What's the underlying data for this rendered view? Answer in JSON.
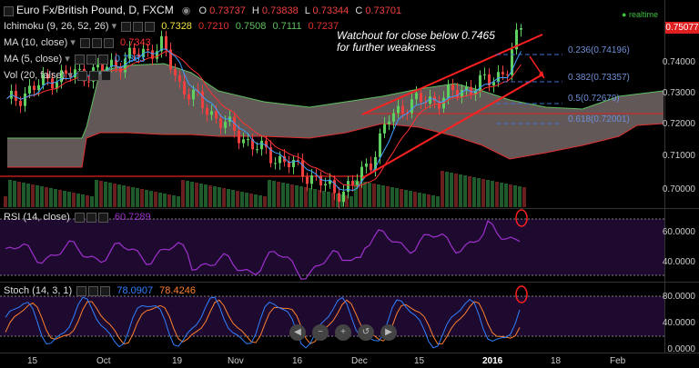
{
  "header": {
    "symbol": "Euro Fx/British Pound, D, FXCM",
    "o_label": "O",
    "o_value": "0.73737",
    "h_label": "H",
    "h_value": "0.73838",
    "l_label": "L",
    "l_value": "0.73344",
    "c_label": "C",
    "c_value": "0.73701"
  },
  "indicators": {
    "ichimoku": {
      "label": "Ichimoku (9, 26, 52, 26)",
      "v1": "0.7328",
      "v2": "0.7210",
      "v3": "0.7508",
      "v4": "0.7111",
      "v5": "0.7237",
      "colors": [
        "#f0e040",
        "#e03030",
        "#5fbf5f",
        "#5fbf5f",
        "#e03030"
      ]
    },
    "ma10": {
      "label": "MA (10, close)",
      "value": "0.7343",
      "color": "#ff3030"
    },
    "ma5": {
      "label": "MA (5, close)",
      "value": "0.7363",
      "color": "#40a0ff"
    },
    "vol": {
      "label": "Vol (20, false)"
    },
    "rsi": {
      "label": "RSI (14, close)",
      "value": "60.7289",
      "color": "#a030d0"
    },
    "stoch": {
      "label": "Stoch (14, 3, 1)",
      "k": "78.0907",
      "d": "78.4246",
      "k_color": "#3080ff",
      "d_color": "#ff8030"
    }
  },
  "status": {
    "label": "realtime",
    "color": "#3fbf3f"
  },
  "annotation": {
    "line1": "Watchout for close below 0.7465",
    "line2": "for further weakness"
  },
  "fib_levels": [
    {
      "ratio": "0.236",
      "price": "(0.74196)",
      "label": "0.236(0.74196)"
    },
    {
      "ratio": "0.382",
      "price": "(0.73357)",
      "label": "0.382(0.73357)"
    },
    {
      "ratio": "0.5",
      "price": "(0.72679)",
      "label": "0.5(0.72679)"
    },
    {
      "ratio": "0.618",
      "price": "(0.72001)",
      "label": "0.618(0.72001)"
    }
  ],
  "price_axis": {
    "last_price": "0.75077",
    "ticks": [
      "0.74000",
      "0.73000",
      "0.72000",
      "0.71000",
      "0.70000"
    ]
  },
  "rsi_axis": {
    "ticks": [
      "60.0000",
      "40.0000"
    ]
  },
  "stoch_axis": {
    "ticks": [
      "80.0000",
      "40.0000",
      "0.0000"
    ]
  },
  "time_axis": {
    "ticks": [
      "15",
      "Oct",
      "19",
      "Nov",
      "16",
      "Dec",
      "15",
      "2016",
      "18",
      "Feb"
    ]
  },
  "nav_buttons": [
    "back-icon",
    "zoom-out-icon",
    "zoom-in-icon",
    "reset-icon",
    "forward-icon"
  ],
  "colors": {
    "up": "#5fcf5f",
    "down": "#ef4040",
    "bg": "#000000",
    "grid": "#1a1a1a",
    "cloud": "#7a6e6e",
    "osc_bg": "#1e0a2e"
  }
}
